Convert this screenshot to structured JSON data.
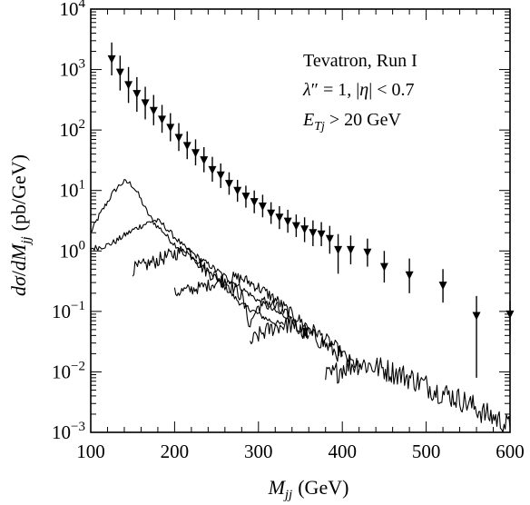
{
  "chart_data": {
    "type": "line",
    "xlabel": {
      "sym": "M",
      "sub": "jj",
      "unit": "(GeV)"
    },
    "ylabel": {
      "num": "dσ",
      "den": "dM",
      "sub": "jj",
      "unit": "(pb/GeV)"
    },
    "xlim": [
      100,
      600
    ],
    "ylim": [
      0.001,
      10000
    ],
    "yscale": "log",
    "x_ticks": [
      {
        "value": 100,
        "label": "100"
      },
      {
        "value": 200,
        "label": "200"
      },
      {
        "value": 300,
        "label": "300"
      },
      {
        "value": 400,
        "label": "400"
      },
      {
        "value": 500,
        "label": "500"
      },
      {
        "value": 600,
        "label": "600"
      }
    ],
    "y_ticks": [
      {
        "value": 10000,
        "base": "10",
        "exp": "4"
      },
      {
        "value": 1000,
        "base": "10",
        "exp": "3"
      },
      {
        "value": 100,
        "base": "10",
        "exp": "2"
      },
      {
        "value": 10,
        "base": "10",
        "exp": "1"
      },
      {
        "value": 1,
        "base": "10",
        "exp": "0"
      },
      {
        "value": 0.1,
        "base": "10",
        "exp": "−1"
      },
      {
        "value": 0.01,
        "base": "10",
        "exp": "−2"
      },
      {
        "value": 0.001,
        "base": "10",
        "exp": "−3"
      }
    ],
    "annotations": [
      {
        "text": "Tevatron, Run I"
      },
      {
        "text": "λ″ = 1, |η| < 0.7"
      },
      {
        "text": "E_Tj > 20 GeV"
      }
    ],
    "data_points": [
      {
        "x": 125,
        "y": 1500,
        "lo": 800,
        "hi": 2800
      },
      {
        "x": 135,
        "y": 900,
        "lo": 450,
        "hi": 1700
      },
      {
        "x": 145,
        "y": 560,
        "lo": 280,
        "hi": 1100
      },
      {
        "x": 155,
        "y": 400,
        "lo": 200,
        "hi": 750
      },
      {
        "x": 165,
        "y": 280,
        "lo": 150,
        "hi": 520
      },
      {
        "x": 175,
        "y": 210,
        "lo": 120,
        "hi": 380
      },
      {
        "x": 185,
        "y": 150,
        "lo": 90,
        "hi": 260
      },
      {
        "x": 195,
        "y": 110,
        "lo": 65,
        "hi": 190
      },
      {
        "x": 205,
        "y": 75,
        "lo": 45,
        "hi": 130
      },
      {
        "x": 215,
        "y": 55,
        "lo": 33,
        "hi": 95
      },
      {
        "x": 225,
        "y": 42,
        "lo": 26,
        "hi": 70
      },
      {
        "x": 235,
        "y": 32,
        "lo": 20,
        "hi": 52
      },
      {
        "x": 245,
        "y": 22,
        "lo": 14,
        "hi": 36
      },
      {
        "x": 255,
        "y": 18,
        "lo": 11,
        "hi": 28
      },
      {
        "x": 265,
        "y": 13,
        "lo": 8.5,
        "hi": 20
      },
      {
        "x": 275,
        "y": 10,
        "lo": 6.5,
        "hi": 15
      },
      {
        "x": 285,
        "y": 8,
        "lo": 5.2,
        "hi": 12
      },
      {
        "x": 295,
        "y": 6.5,
        "lo": 4.2,
        "hi": 10
      },
      {
        "x": 305,
        "y": 5.5,
        "lo": 3.6,
        "hi": 8.5
      },
      {
        "x": 315,
        "y": 4.2,
        "lo": 2.8,
        "hi": 6.4
      },
      {
        "x": 325,
        "y": 3.6,
        "lo": 2.3,
        "hi": 5.5
      },
      {
        "x": 335,
        "y": 3.1,
        "lo": 2.0,
        "hi": 4.8
      },
      {
        "x": 345,
        "y": 2.6,
        "lo": 1.7,
        "hi": 4.0
      },
      {
        "x": 355,
        "y": 2.3,
        "lo": 1.4,
        "hi": 3.6
      },
      {
        "x": 365,
        "y": 2.0,
        "lo": 1.2,
        "hi": 3.2
      },
      {
        "x": 375,
        "y": 1.9,
        "lo": 1.2,
        "hi": 3.0
      },
      {
        "x": 385,
        "y": 1.6,
        "lo": 0.9,
        "hi": 2.6
      },
      {
        "x": 395,
        "y": 1.05,
        "lo": 0.42,
        "hi": 1.9
      },
      {
        "x": 410,
        "y": 1.05,
        "lo": 0.6,
        "hi": 1.8
      },
      {
        "x": 430,
        "y": 0.95,
        "lo": 0.55,
        "hi": 1.6
      },
      {
        "x": 450,
        "y": 0.55,
        "lo": 0.3,
        "hi": 1.0
      },
      {
        "x": 480,
        "y": 0.4,
        "lo": 0.2,
        "hi": 0.75
      },
      {
        "x": 520,
        "y": 0.27,
        "lo": 0.14,
        "hi": 0.5
      },
      {
        "x": 560,
        "y": 0.085,
        "lo": 0.008,
        "hi": 0.18
      },
      {
        "x": 600,
        "y": 0.09,
        "lo": 0.04,
        "hi": 0.15
      }
    ],
    "series": [
      {
        "style": "noisy-0.05",
        "x": [
          100,
          110,
          120,
          125,
          130,
          135,
          140,
          145,
          150,
          155,
          160,
          165,
          170,
          175,
          180,
          185,
          190,
          195,
          200,
          205,
          210,
          215,
          220,
          230,
          240,
          250,
          260,
          270,
          280,
          290,
          300,
          310,
          320,
          330
        ],
        "y": [
          2.0,
          3.8,
          6.5,
          8.5,
          10.5,
          12.5,
          13.8,
          13.5,
          12.0,
          9.5,
          7.0,
          5.0,
          3.8,
          3.0,
          2.5,
          2.2,
          1.8,
          1.5,
          1.3,
          1.15,
          1.0,
          0.9,
          0.8,
          0.6,
          0.45,
          0.35,
          0.25,
          0.18,
          0.13,
          0.11,
          0.09,
          0.075,
          0.065,
          0.06
        ]
      },
      {
        "style": "noisy-0.05",
        "x": [
          100,
          110,
          120,
          130,
          140,
          150,
          160,
          170,
          175,
          180,
          185,
          190,
          195,
          200,
          205,
          210,
          220,
          230,
          240,
          250,
          260,
          270,
          280,
          290,
          300,
          310,
          320,
          330,
          340
        ],
        "y": [
          1.1,
          1.15,
          1.25,
          1.45,
          1.8,
          2.2,
          2.6,
          3.0,
          3.2,
          3.1,
          2.8,
          2.4,
          2.0,
          1.7,
          1.45,
          1.2,
          0.95,
          0.75,
          0.6,
          0.48,
          0.38,
          0.3,
          0.24,
          0.19,
          0.15,
          0.12,
          0.1,
          0.085,
          0.08
        ]
      },
      {
        "style": "noisy-0.12",
        "x": [
          150,
          160,
          170,
          180,
          190,
          200,
          210,
          215,
          220,
          225,
          230,
          240,
          250,
          260,
          270,
          280,
          285,
          290,
          295,
          300,
          310,
          320,
          330,
          340,
          350,
          360
        ],
        "y": [
          0.5,
          0.55,
          0.62,
          0.7,
          0.8,
          0.9,
          1.0,
          1.05,
          0.95,
          0.8,
          0.6,
          0.45,
          0.38,
          0.3,
          0.25,
          0.18,
          0.1,
          0.06,
          0.09,
          0.12,
          0.15,
          0.12,
          0.09,
          0.07,
          0.05,
          0.04
        ]
      },
      {
        "style": "noisy-0.1",
        "x": [
          200,
          210,
          220,
          230,
          240,
          250,
          260,
          270,
          280,
          290,
          300,
          310,
          320,
          330,
          340,
          350,
          360,
          370,
          380,
          390,
          400,
          410,
          420
        ],
        "y": [
          0.2,
          0.22,
          0.23,
          0.25,
          0.27,
          0.3,
          0.33,
          0.36,
          0.35,
          0.3,
          0.25,
          0.2,
          0.16,
          0.12,
          0.09,
          0.07,
          0.055,
          0.045,
          0.035,
          0.028,
          0.02,
          0.015,
          0.012
        ]
      },
      {
        "style": "noisy-0.14",
        "x": [
          290,
          300,
          310,
          320,
          330,
          340,
          350,
          360,
          370,
          380,
          390,
          400
        ],
        "y": [
          0.03,
          0.04,
          0.048,
          0.055,
          0.06,
          0.058,
          0.05,
          0.042,
          0.035,
          0.028,
          0.022,
          0.018
        ]
      },
      {
        "style": "noisy-0.2",
        "x": [
          380,
          390,
          400,
          410,
          420,
          430,
          440,
          450,
          460,
          470,
          480,
          490,
          500,
          510,
          520,
          530,
          540,
          550,
          560,
          570,
          580,
          590,
          600
        ],
        "y": [
          0.008,
          0.009,
          0.012,
          0.013,
          0.014,
          0.013,
          0.012,
          0.011,
          0.01,
          0.009,
          0.008,
          0.007,
          0.006,
          0.005,
          0.0045,
          0.004,
          0.0035,
          0.003,
          0.0025,
          0.002,
          0.0018,
          0.0015,
          0.0012
        ]
      }
    ]
  }
}
